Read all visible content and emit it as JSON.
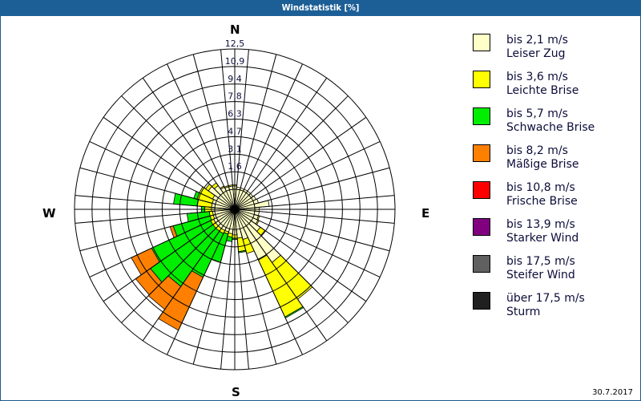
{
  "window": {
    "title": "Windstatistik [%]"
  },
  "footer": {
    "date": "30.7.2017"
  },
  "compass": {
    "north": "N",
    "east": "E",
    "south": "S",
    "west": "W"
  },
  "legend": {
    "items": [
      {
        "speed": "bis 2,1 m/s",
        "name": "Leiser Zug",
        "color": "#ffffc8"
      },
      {
        "speed": "bis 3,6 m/s",
        "name": "Leichte Brise",
        "color": "#ffff00"
      },
      {
        "speed": "bis 5,7 m/s",
        "name": "Schwache Brise",
        "color": "#00ee00"
      },
      {
        "speed": "bis 8,2 m/s",
        "name": "Mäßige Brise",
        "color": "#ff8000"
      },
      {
        "speed": "bis 10,8 m/s",
        "name": "Frische Brise",
        "color": "#ff0000"
      },
      {
        "speed": "bis 13,9 m/s",
        "name": "Starker Wind",
        "color": "#800080"
      },
      {
        "speed": "bis 17,5 m/s",
        "name": "Steifer Wind",
        "color": "#606060"
      },
      {
        "speed": "über 17,5 m/s",
        "name": "Sturm",
        "color": "#202020"
      }
    ]
  },
  "chart_data": {
    "type": "wind_rose",
    "title": "Windstatistik [%]",
    "unit": "%",
    "center": [
      293,
      241
    ],
    "calm_radius": 25,
    "outer_radius": 200,
    "ring_labels": [
      "1,6",
      "3,1",
      "4,7",
      "6,3",
      "7,8",
      "9,4",
      "10,9",
      "12,5"
    ],
    "ring_max": 12.5,
    "sector_width_deg": 10,
    "sector_count": 36,
    "speed_classes": [
      "bis 2,1 m/s",
      "bis 3,6 m/s",
      "bis 5,7 m/s",
      "bis 8,2 m/s",
      "bis 10,8 m/s",
      "bis 13,9 m/s",
      "bis 17,5 m/s",
      "über 17,5 m/s"
    ],
    "class_colors": [
      "#ffffc8",
      "#ffff00",
      "#00ee00",
      "#ff8000",
      "#ff0000",
      "#800080",
      "#606060",
      "#202020"
    ],
    "sectors": [
      {
        "dir": 0,
        "values": [
          0.3,
          0.1,
          0,
          0
        ]
      },
      {
        "dir": 10,
        "values": [
          0.2,
          0,
          0,
          0
        ]
      },
      {
        "dir": 20,
        "values": [
          0.2,
          0,
          0,
          0
        ]
      },
      {
        "dir": 30,
        "values": [
          0.2,
          0,
          0,
          0
        ]
      },
      {
        "dir": 40,
        "values": [
          0.2,
          0,
          0,
          0
        ]
      },
      {
        "dir": 50,
        "values": [
          0.2,
          0,
          0,
          0
        ]
      },
      {
        "dir": 60,
        "values": [
          0.3,
          0,
          0,
          0
        ]
      },
      {
        "dir": 70,
        "values": [
          0.4,
          0,
          0,
          0
        ]
      },
      {
        "dir": 80,
        "values": [
          1.3,
          0,
          0,
          0
        ]
      },
      {
        "dir": 90,
        "values": [
          0.4,
          0,
          0,
          0
        ]
      },
      {
        "dir": 100,
        "values": [
          0.4,
          0,
          0,
          0
        ]
      },
      {
        "dir": 110,
        "values": [
          0.4,
          0.1,
          0,
          0
        ]
      },
      {
        "dir": 120,
        "values": [
          0.5,
          0.1,
          0,
          0
        ]
      },
      {
        "dir": 130,
        "values": [
          1.0,
          0.5,
          0,
          0
        ]
      },
      {
        "dir": 140,
        "values": [
          4.0,
          4.0,
          0,
          0
        ]
      },
      {
        "dir": 150,
        "values": [
          3.2,
          5.6,
          0.1,
          0
        ]
      },
      {
        "dir": 160,
        "values": [
          1.0,
          1.3,
          0,
          0
        ]
      },
      {
        "dir": 170,
        "values": [
          0.8,
          1.2,
          0.1,
          0
        ]
      },
      {
        "dir": 180,
        "values": [
          0.5,
          0.3,
          0.1,
          0
        ]
      },
      {
        "dir": 190,
        "values": [
          0.4,
          0.3,
          0.4,
          0
        ]
      },
      {
        "dir": 200,
        "values": [
          0.3,
          0.2,
          2.6,
          0
        ]
      },
      {
        "dir": 210,
        "values": [
          0.3,
          0.3,
          4.3,
          5.2
        ]
      },
      {
        "dir": 220,
        "values": [
          0.3,
          0.3,
          6.0,
          2.5
        ]
      },
      {
        "dir": 230,
        "values": [
          0.3,
          0.3,
          6.8,
          1.6
        ]
      },
      {
        "dir": 240,
        "values": [
          0.3,
          0.3,
          5.8,
          2.0
        ]
      },
      {
        "dir": 250,
        "values": [
          0.2,
          0.3,
          3.4,
          0.3
        ]
      },
      {
        "dir": 260,
        "values": [
          0.2,
          0.3,
          2.0,
          0
        ]
      },
      {
        "dir": 270,
        "values": [
          0.3,
          0.6,
          0.3,
          0
        ]
      },
      {
        "dir": 280,
        "values": [
          0.3,
          1.3,
          2.1,
          0
        ]
      },
      {
        "dir": 290,
        "values": [
          0.3,
          1.4,
          0.3,
          0
        ]
      },
      {
        "dir": 300,
        "values": [
          0.4,
          1.3,
          0,
          0
        ]
      },
      {
        "dir": 310,
        "values": [
          1.1,
          0.3,
          0,
          0
        ]
      },
      {
        "dir": 320,
        "values": [
          0.8,
          0.3,
          0,
          0
        ]
      },
      {
        "dir": 330,
        "values": [
          0.4,
          0.1,
          0,
          0
        ]
      },
      {
        "dir": 340,
        "values": [
          0.3,
          0.1,
          0,
          0
        ]
      },
      {
        "dir": 350,
        "values": [
          0.3,
          0.1,
          0,
          0
        ]
      }
    ],
    "grid": true,
    "legend_position": "right"
  }
}
